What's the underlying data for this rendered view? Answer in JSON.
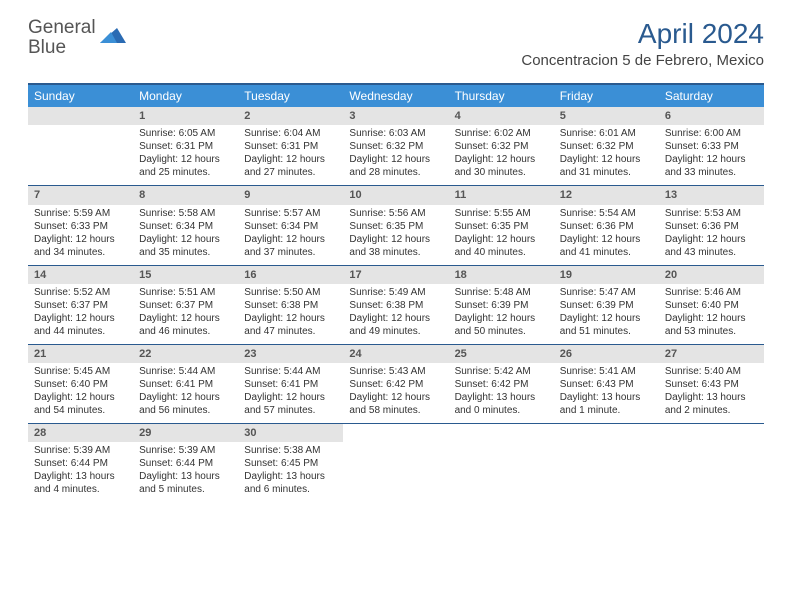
{
  "brand": {
    "part1": "General",
    "part2": "Blue"
  },
  "title": "April 2024",
  "location": "Concentracion 5 de Febrero, Mexico",
  "colors": {
    "header_blue": "#3b8fd6",
    "title_color": "#2a5a8f",
    "daybar_bg": "#e4e4e4",
    "text": "#333333"
  },
  "weekdays": [
    "Sunday",
    "Monday",
    "Tuesday",
    "Wednesday",
    "Thursday",
    "Friday",
    "Saturday"
  ],
  "weeks": [
    [
      {
        "n": "",
        "empty": true
      },
      {
        "n": "1",
        "sr": "6:05 AM",
        "ss": "6:31 PM",
        "dl": "12 hours and 25 minutes."
      },
      {
        "n": "2",
        "sr": "6:04 AM",
        "ss": "6:31 PM",
        "dl": "12 hours and 27 minutes."
      },
      {
        "n": "3",
        "sr": "6:03 AM",
        "ss": "6:32 PM",
        "dl": "12 hours and 28 minutes."
      },
      {
        "n": "4",
        "sr": "6:02 AM",
        "ss": "6:32 PM",
        "dl": "12 hours and 30 minutes."
      },
      {
        "n": "5",
        "sr": "6:01 AM",
        "ss": "6:32 PM",
        "dl": "12 hours and 31 minutes."
      },
      {
        "n": "6",
        "sr": "6:00 AM",
        "ss": "6:33 PM",
        "dl": "12 hours and 33 minutes."
      }
    ],
    [
      {
        "n": "7",
        "sr": "5:59 AM",
        "ss": "6:33 PM",
        "dl": "12 hours and 34 minutes."
      },
      {
        "n": "8",
        "sr": "5:58 AM",
        "ss": "6:34 PM",
        "dl": "12 hours and 35 minutes."
      },
      {
        "n": "9",
        "sr": "5:57 AM",
        "ss": "6:34 PM",
        "dl": "12 hours and 37 minutes."
      },
      {
        "n": "10",
        "sr": "5:56 AM",
        "ss": "6:35 PM",
        "dl": "12 hours and 38 minutes."
      },
      {
        "n": "11",
        "sr": "5:55 AM",
        "ss": "6:35 PM",
        "dl": "12 hours and 40 minutes."
      },
      {
        "n": "12",
        "sr": "5:54 AM",
        "ss": "6:36 PM",
        "dl": "12 hours and 41 minutes."
      },
      {
        "n": "13",
        "sr": "5:53 AM",
        "ss": "6:36 PM",
        "dl": "12 hours and 43 minutes."
      }
    ],
    [
      {
        "n": "14",
        "sr": "5:52 AM",
        "ss": "6:37 PM",
        "dl": "12 hours and 44 minutes."
      },
      {
        "n": "15",
        "sr": "5:51 AM",
        "ss": "6:37 PM",
        "dl": "12 hours and 46 minutes."
      },
      {
        "n": "16",
        "sr": "5:50 AM",
        "ss": "6:38 PM",
        "dl": "12 hours and 47 minutes."
      },
      {
        "n": "17",
        "sr": "5:49 AM",
        "ss": "6:38 PM",
        "dl": "12 hours and 49 minutes."
      },
      {
        "n": "18",
        "sr": "5:48 AM",
        "ss": "6:39 PM",
        "dl": "12 hours and 50 minutes."
      },
      {
        "n": "19",
        "sr": "5:47 AM",
        "ss": "6:39 PM",
        "dl": "12 hours and 51 minutes."
      },
      {
        "n": "20",
        "sr": "5:46 AM",
        "ss": "6:40 PM",
        "dl": "12 hours and 53 minutes."
      }
    ],
    [
      {
        "n": "21",
        "sr": "5:45 AM",
        "ss": "6:40 PM",
        "dl": "12 hours and 54 minutes."
      },
      {
        "n": "22",
        "sr": "5:44 AM",
        "ss": "6:41 PM",
        "dl": "12 hours and 56 minutes."
      },
      {
        "n": "23",
        "sr": "5:44 AM",
        "ss": "6:41 PM",
        "dl": "12 hours and 57 minutes."
      },
      {
        "n": "24",
        "sr": "5:43 AM",
        "ss": "6:42 PM",
        "dl": "12 hours and 58 minutes."
      },
      {
        "n": "25",
        "sr": "5:42 AM",
        "ss": "6:42 PM",
        "dl": "13 hours and 0 minutes."
      },
      {
        "n": "26",
        "sr": "5:41 AM",
        "ss": "6:43 PM",
        "dl": "13 hours and 1 minute."
      },
      {
        "n": "27",
        "sr": "5:40 AM",
        "ss": "6:43 PM",
        "dl": "13 hours and 2 minutes."
      }
    ],
    [
      {
        "n": "28",
        "sr": "5:39 AM",
        "ss": "6:44 PM",
        "dl": "13 hours and 4 minutes."
      },
      {
        "n": "29",
        "sr": "5:39 AM",
        "ss": "6:44 PM",
        "dl": "13 hours and 5 minutes."
      },
      {
        "n": "30",
        "sr": "5:38 AM",
        "ss": "6:45 PM",
        "dl": "13 hours and 6 minutes."
      },
      {
        "n": "",
        "empty": true
      },
      {
        "n": "",
        "empty": true
      },
      {
        "n": "",
        "empty": true
      },
      {
        "n": "",
        "empty": true
      }
    ]
  ],
  "labels": {
    "sunrise": "Sunrise: ",
    "sunset": "Sunset: ",
    "daylight": "Daylight: "
  }
}
